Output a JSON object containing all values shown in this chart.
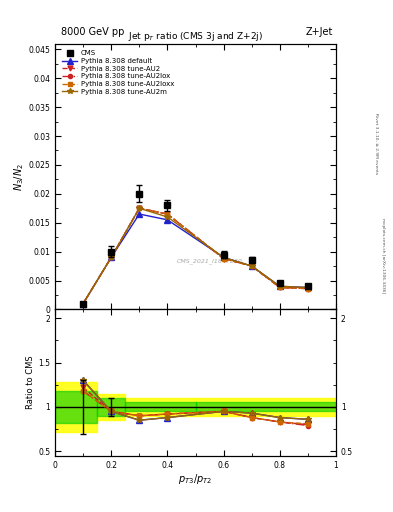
{
  "title_top": "8000 GeV pp",
  "title_right": "Z+Jet",
  "plot_title": "Jet p$_T$ ratio (CMS 3j and Z+2j)",
  "xlabel": "$p_{T3}/p_{T2}$",
  "ylabel_main": "$N_3/N_2$",
  "ylabel_ratio": "Ratio to CMS",
  "watermark": "CMS_2021_I1847230",
  "right_label": "Rivet 3.1.10, ≥ 2.9M events",
  "right_label2": "mcplots.cern.ch [arXiv:1306.3436]",
  "x_data": [
    0.1,
    0.2,
    0.3,
    0.4,
    0.6,
    0.7,
    0.8,
    0.9
  ],
  "cms_y": [
    0.001,
    0.01,
    0.02,
    0.018,
    0.0095,
    0.0085,
    0.0045,
    0.004
  ],
  "cms_yerr": [
    0.0003,
    0.001,
    0.0015,
    0.001,
    0.0006,
    0.0005,
    0.0003,
    0.0003
  ],
  "py_default_y": [
    0.001,
    0.009,
    0.0165,
    0.0155,
    0.009,
    0.0075,
    0.004,
    0.0038
  ],
  "py_au2_y": [
    0.001,
    0.009,
    0.0175,
    0.0165,
    0.0088,
    0.0075,
    0.0038,
    0.0036
  ],
  "py_au2lox_y": [
    0.001,
    0.009,
    0.0175,
    0.0165,
    0.0088,
    0.0075,
    0.0038,
    0.0036
  ],
  "py_au2loxx_y": [
    0.001,
    0.009,
    0.0175,
    0.0165,
    0.0088,
    0.0075,
    0.0038,
    0.0036
  ],
  "py_au2m_y": [
    0.001,
    0.009,
    0.0175,
    0.016,
    0.009,
    0.0075,
    0.004,
    0.0038
  ],
  "ratio_default": [
    1.3,
    0.95,
    0.85,
    0.88,
    0.95,
    0.93,
    0.88,
    0.86
  ],
  "ratio_au2": [
    1.22,
    0.95,
    0.9,
    0.92,
    0.95,
    0.88,
    0.83,
    0.8
  ],
  "ratio_au2lox": [
    1.18,
    0.95,
    0.9,
    0.92,
    0.95,
    0.88,
    0.83,
    0.79
  ],
  "ratio_au2loxx": [
    1.18,
    0.95,
    0.9,
    0.92,
    0.95,
    0.88,
    0.83,
    0.81
  ],
  "ratio_au2m": [
    1.3,
    0.95,
    0.85,
    0.88,
    0.95,
    0.93,
    0.88,
    0.86
  ],
  "color_default": "#2222cc",
  "color_au2": "#cc2222",
  "color_au2lox": "#cc2222",
  "color_au2loxx": "#cc6600",
  "color_au2m": "#996600",
  "ylim_main": [
    0,
    0.046
  ],
  "ylim_ratio": [
    0.45,
    2.1
  ],
  "xlim": [
    0.0,
    1.0
  ]
}
